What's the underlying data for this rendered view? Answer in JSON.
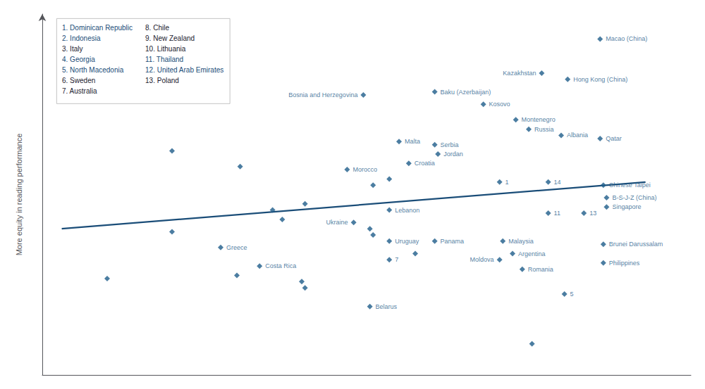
{
  "chart_data": {
    "type": "scatter",
    "ylabel": "More equity in reading performance",
    "xlim": [
      1.5,
      11.5
    ],
    "ylim": [
      20,
      78
    ],
    "tick_labels": false,
    "grid": false,
    "series": [
      {
        "type": "scatter",
        "color": "#1e5c8a",
        "marker": "diamond",
        "x": [
          10.1,
          9.2,
          9.6,
          7.55,
          6.45,
          8.3,
          8.8,
          9.0,
          9.5,
          10.1,
          7.0,
          7.55,
          7.6,
          7.15,
          6.2,
          6.85,
          6.6,
          8.55,
          9.3,
          10.15,
          10.2,
          10.2,
          6.85,
          9.3,
          9.85,
          6.3,
          6.55,
          6.6,
          6.85,
          7.55,
          8.6,
          10.15,
          8.75,
          8.55,
          10.15,
          8.9,
          3.5,
          4.55,
          4.25,
          5.05,
          5.2,
          5.55,
          4.85,
          4.5,
          5.5,
          5.55,
          6.55,
          9.05,
          3.5,
          2.5,
          6.85,
          7.25,
          9.55
        ],
        "values": [
          74,
          68.5,
          67.5,
          65.5,
          65,
          63.5,
          61,
          59.5,
          58.5,
          58,
          57.5,
          57,
          55.5,
          54,
          53,
          51.5,
          50.5,
          51,
          51,
          50.5,
          48.5,
          47,
          46.5,
          46,
          46,
          44.5,
          43.5,
          42.5,
          41.5,
          41.5,
          41.5,
          41,
          39.5,
          38.5,
          38,
          37,
          43,
          53.5,
          40.5,
          46.5,
          45,
          47.5,
          37.5,
          36,
          35,
          34,
          31,
          25,
          56,
          35.5,
          38.5,
          39.5,
          33
        ],
        "labels": [
          "Macao (China)",
          "Kazakhstan",
          "Hong Kong (China)",
          "Baku (Azerbaijan)",
          "Bosnia and Herzegovina",
          "Kosovo",
          "Montenegro",
          "Russia",
          "Albania",
          "Qatar",
          "Malta",
          "Serbia",
          "Jordan",
          "Croatia",
          "Morocco",
          null,
          null,
          "1",
          "14",
          "Chinese Taipei",
          "B-S-J-Z (China)",
          "Singapore",
          "Lebanon",
          "11",
          "13",
          "Ukraine",
          null,
          null,
          "Uruguay",
          "Panama",
          "Malaysia",
          "Brunei Darussalam",
          "Argentina",
          "Moldova",
          "Philippines",
          "Romania",
          null,
          null,
          "Greece",
          null,
          null,
          null,
          "Costa Rica",
          null,
          null,
          null,
          "Belarus",
          null,
          null,
          null,
          "7",
          null,
          "5"
        ]
      },
      {
        "type": "line",
        "color": "#1a4d78",
        "x": [
          1.8,
          10.8
        ],
        "values": [
          43.5,
          51.0
        ]
      }
    ],
    "annotations": [
      [
        {
          "text": "1. Dominican Republic",
          "color": "#1a4d78"
        },
        {
          "text": "2. Indonesia",
          "color": "#1a4d78"
        },
        {
          "text": "3. Italy",
          "color": "#1a1a2e"
        },
        {
          "text": "4. Georgia",
          "color": "#1a4d78"
        },
        {
          "text": "5. North Macedonia",
          "color": "#1a4d78"
        },
        {
          "text": "6. Sweden",
          "color": "#1a1a2e"
        },
        {
          "text": "7. Australia",
          "color": "#1a1a2e"
        }
      ],
      [
        {
          "text": "8. Chile",
          "color": "#1a1a2e"
        },
        {
          "text": "9. New Zealand",
          "color": "#1a1a2e"
        },
        {
          "text": "10. Lithuania",
          "color": "#1a1a2e"
        },
        {
          "text": "11. Thailand",
          "color": "#1a4d78"
        },
        {
          "text": "12. United Arab Emirates",
          "color": "#1a4d78"
        },
        {
          "text": "13. Poland",
          "color": "#1a1a2e"
        }
      ]
    ]
  }
}
